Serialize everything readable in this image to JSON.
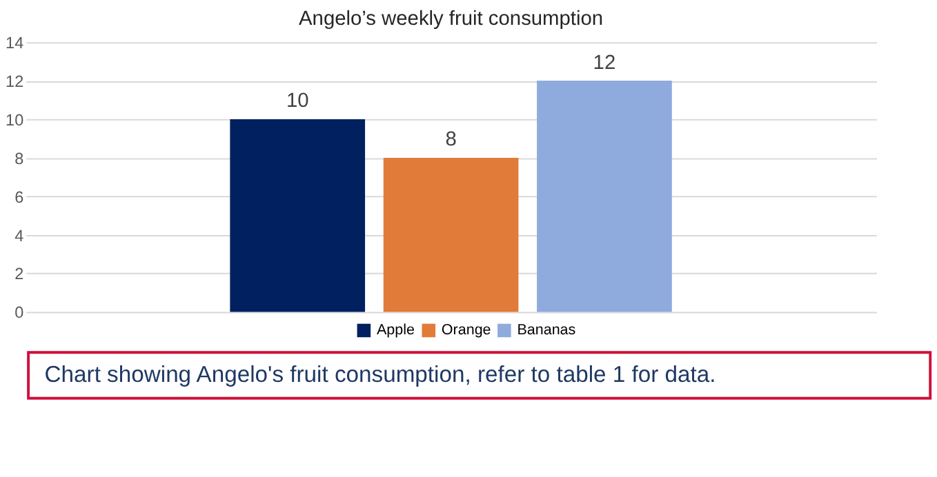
{
  "chart_data": {
    "type": "bar",
    "title": "Angelo’s weekly fruit consumption",
    "categories": [
      null
    ],
    "series": [
      {
        "name": "Apple",
        "color": "#002060",
        "values": [
          10
        ]
      },
      {
        "name": "Orange",
        "color": "#e07b39",
        "values": [
          8
        ]
      },
      {
        "name": "Bananas",
        "color": "#8faadc",
        "values": [
          12
        ]
      }
    ],
    "ylim": [
      0,
      14
    ],
    "yticks": [
      0,
      2,
      4,
      6,
      8,
      10,
      12,
      14
    ],
    "grid": "y",
    "legend": "bottom",
    "data_labels": true,
    "annotations": [
      "Chart showing Angelo's fruit consumption, refer to table 1 for data."
    ]
  }
}
